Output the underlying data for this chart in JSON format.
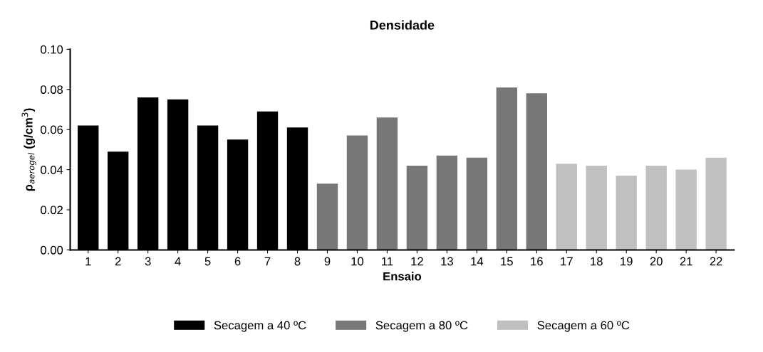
{
  "chart_data": {
    "type": "bar",
    "title": "Densidade",
    "xlabel": "Ensaio",
    "ylabel": "ρ$_{aerogel}$ (g/cm$^{3}$)",
    "categories": [
      "1",
      "2",
      "3",
      "4",
      "5",
      "6",
      "7",
      "8",
      "9",
      "10",
      "11",
      "12",
      "13",
      "14",
      "15",
      "16",
      "17",
      "18",
      "19",
      "20",
      "21",
      "22"
    ],
    "series": [
      {
        "name": "Secagem a 40 ºC",
        "color": "#000000",
        "values": [
          0.062,
          0.049,
          0.076,
          0.075,
          0.062,
          0.055,
          0.069,
          0.061,
          null,
          null,
          null,
          null,
          null,
          null,
          null,
          null,
          null,
          null,
          null,
          null,
          null,
          null
        ]
      },
      {
        "name": "Secagem a 80 ºC",
        "color": "#777777",
        "values": [
          null,
          null,
          null,
          null,
          null,
          null,
          null,
          null,
          0.033,
          0.057,
          0.066,
          0.042,
          0.047,
          0.046,
          0.081,
          0.078,
          null,
          null,
          null,
          null,
          null,
          null
        ]
      },
      {
        "name": "Secagem a 60 ºC",
        "color": "#c0c0c0",
        "values": [
          null,
          null,
          null,
          null,
          null,
          null,
          null,
          null,
          null,
          null,
          null,
          null,
          null,
          null,
          null,
          null,
          0.043,
          0.042,
          0.037,
          0.042,
          0.04,
          0.046
        ]
      }
    ],
    "ylim": [
      0,
      0.1
    ],
    "yticks": [
      {
        "value": 0,
        "label": "0.00"
      },
      {
        "value": 0.02,
        "label": "0.02"
      },
      {
        "value": 0.04,
        "label": "0.04"
      },
      {
        "value": 0.06,
        "label": "0.06"
      },
      {
        "value": 0.08,
        "label": "0.08"
      },
      {
        "value": 0.1,
        "label": "0.10"
      }
    ],
    "grid": false,
    "legend": "bottom"
  }
}
